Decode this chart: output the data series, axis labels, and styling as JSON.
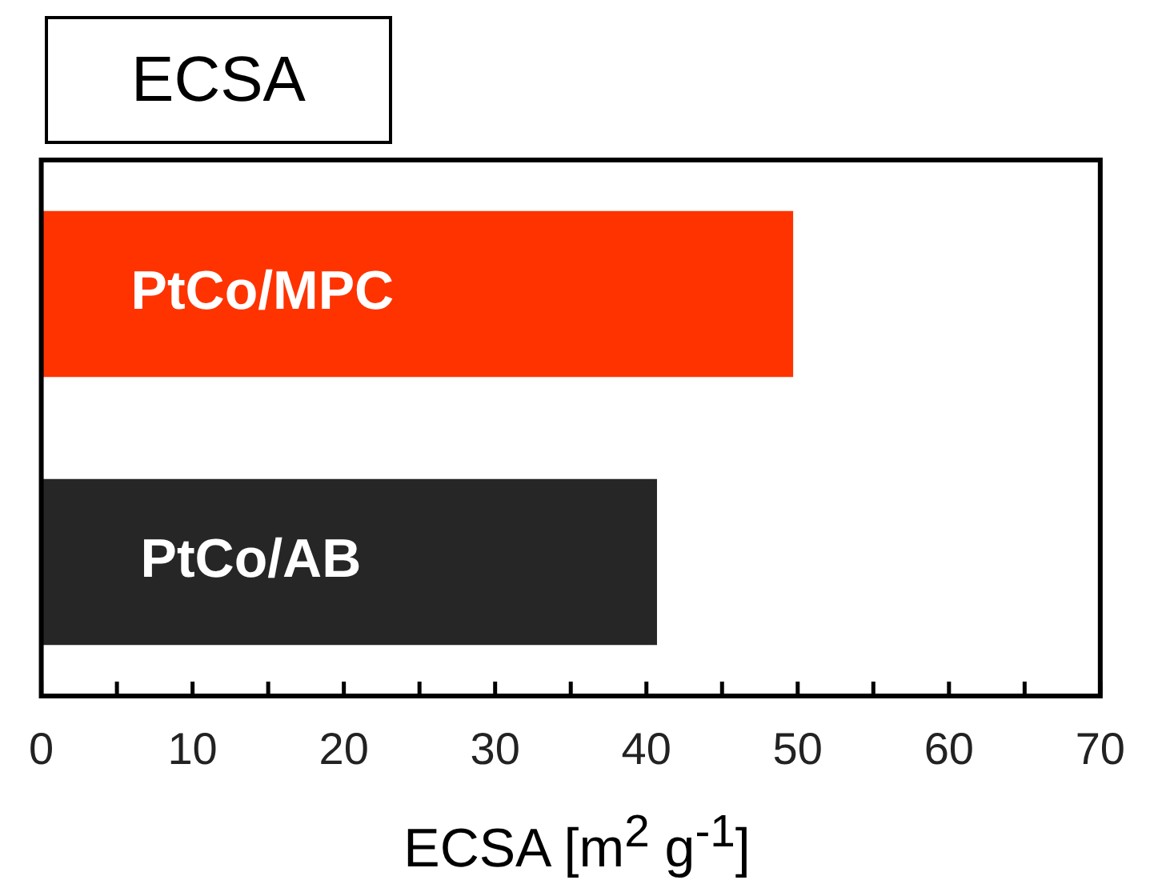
{
  "chart_data": {
    "type": "bar",
    "orientation": "horizontal",
    "title": "ECSA",
    "xlabel": "ECSA [m$^{2}$ g$^{-1}$]",
    "categories": [
      "PtCo/MPC",
      "PtCo/AB"
    ],
    "values": [
      49.7,
      40.7
    ],
    "colors": [
      "#ff3300",
      "#262626"
    ],
    "xlim": [
      0,
      70
    ],
    "xticks": [
      0,
      {
        "value": 5,
        "label": null
      },
      10,
      {
        "value": 15,
        "label": null
      },
      20,
      {
        "value": 25,
        "label": null
      },
      30,
      {
        "value": 35,
        "label": null
      },
      40,
      {
        "value": 45,
        "label": null
      },
      50,
      {
        "value": 55,
        "label": null
      },
      60,
      {
        "value": 65,
        "label": null
      },
      70
    ],
    "tick_labels": "x",
    "grid": false,
    "legend": false
  }
}
